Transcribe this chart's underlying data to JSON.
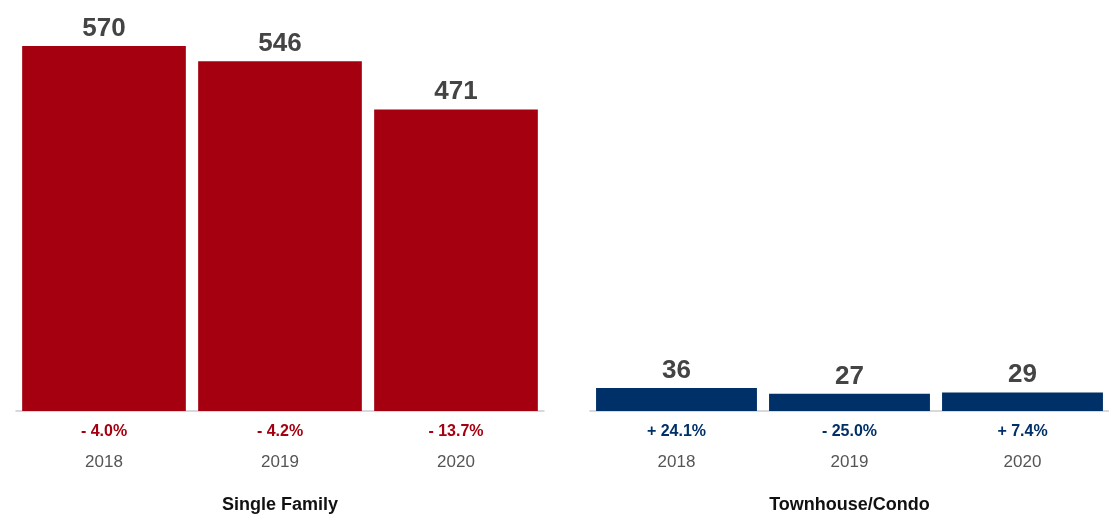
{
  "chart_data": [
    {
      "type": "bar",
      "xlabel": "Single Family",
      "categories": [
        "2018",
        "2019",
        "2020"
      ],
      "values": [
        570,
        546,
        471
      ],
      "color": "#a50010",
      "data_labels": true,
      "tick_labels": "x",
      "annotations": [
        {
          "text": "- 4.0%",
          "x": "2018",
          "y": 0
        },
        {
          "text": "- 4.2%",
          "x": "2019",
          "y": 0
        },
        {
          "text": "- 13.7%",
          "x": "2020",
          "y": 0
        }
      ]
    },
    {
      "type": "bar",
      "xlabel": "Townhouse/Condo",
      "categories": [
        "2018",
        "2019",
        "2020"
      ],
      "values": [
        36,
        27,
        29
      ],
      "color": "#003068",
      "data_labels": true,
      "tick_labels": "x",
      "annotations": [
        {
          "text": "+ 24.1%",
          "x": "2018",
          "y": 0
        },
        {
          "text": "- 25.0%",
          "x": "2019",
          "y": 0
        },
        {
          "text": "+ 7.4%",
          "x": "2020",
          "y": 0
        }
      ]
    }
  ]
}
